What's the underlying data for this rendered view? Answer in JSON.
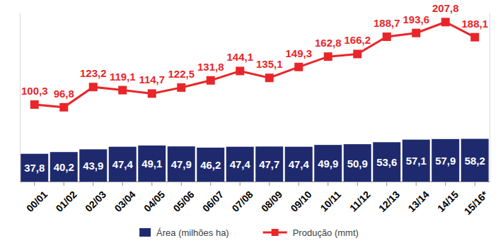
{
  "chart_data": {
    "type": "bar",
    "categories": [
      "00/01",
      "01/02",
      "02/03",
      "03/04",
      "04/05",
      "05/06",
      "06/07",
      "07/08",
      "08/09",
      "09/10",
      "10/11",
      "11/12",
      "12/13",
      "13/14",
      "14/15",
      "15/16*"
    ],
    "series": [
      {
        "name": "Área (milhões ha)",
        "type": "bar",
        "color": "#1f2a6e",
        "values": [
          37.8,
          40.2,
          43.9,
          47.4,
          49.1,
          47.9,
          46.2,
          47.4,
          47.7,
          47.4,
          49.9,
          50.9,
          53.6,
          57.1,
          57.9,
          58.2
        ],
        "value_labels": [
          "37,8",
          "40,2",
          "43,9",
          "47,4",
          "49,1",
          "47,9",
          "46,2",
          "47,4",
          "47,7",
          "47,4",
          "49,9",
          "50,9",
          "53,6",
          "57,1",
          "57,9",
          "58,2"
        ]
      },
      {
        "name": "Produção (mmt)",
        "type": "line",
        "color": "#e8262a",
        "marker": "square",
        "axis": "y2",
        "values": [
          100.3,
          96.8,
          123.2,
          119.1,
          114.7,
          122.5,
          131.8,
          144.1,
          135.1,
          149.3,
          162.8,
          166.2,
          188.7,
          193.6,
          207.8,
          188.1
        ],
        "value_labels": [
          "100,3",
          "96,8",
          "123,2",
          "119,1",
          "114,7",
          "122,5",
          "131,8",
          "144,1",
          "135,1",
          "149,3",
          "162,8",
          "166,2",
          "188,7",
          "193,6",
          "207,8",
          "188,1"
        ]
      }
    ],
    "ylim": [
      0,
      230
    ],
    "y2lim": [
      0,
      220
    ],
    "tick_labels": "x",
    "data_labels": true,
    "legend": "bottom"
  }
}
